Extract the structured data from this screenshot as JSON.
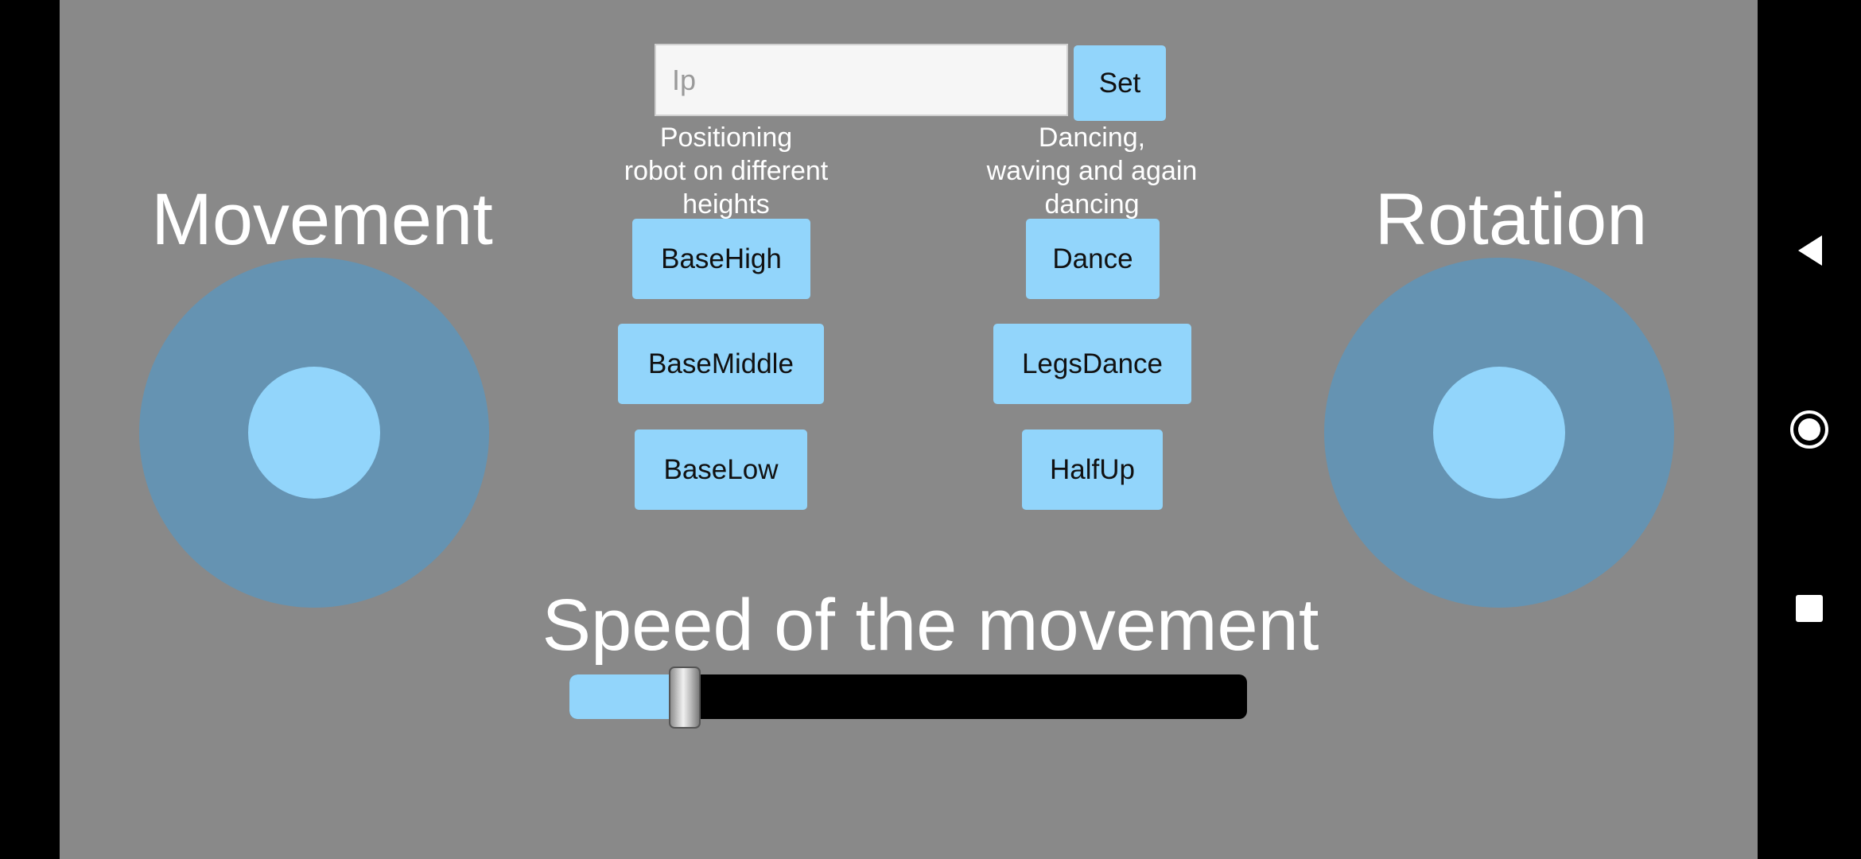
{
  "ip_field": {
    "placeholder": "Ip",
    "value": ""
  },
  "set_button": "Set",
  "movement": {
    "title": "Movement"
  },
  "rotation": {
    "title": "Rotation"
  },
  "positioning": {
    "caption": "Positioning\nrobot on different\nheights",
    "buttons": [
      "BaseHigh",
      "BaseMiddle",
      "BaseLow"
    ]
  },
  "dancing": {
    "caption": "Dancing,\nwaving and again\ndancing",
    "buttons": [
      "Dance",
      "LegsDance",
      "HalfUp"
    ]
  },
  "speed": {
    "title": "Speed of the movement",
    "value_fraction": 0.17
  },
  "nav": {
    "icons": [
      "back-icon",
      "home-icon",
      "recents-icon"
    ]
  },
  "colors": {
    "background": "#898989",
    "accent": "#92d5fb",
    "joystick": "#6593b2"
  }
}
